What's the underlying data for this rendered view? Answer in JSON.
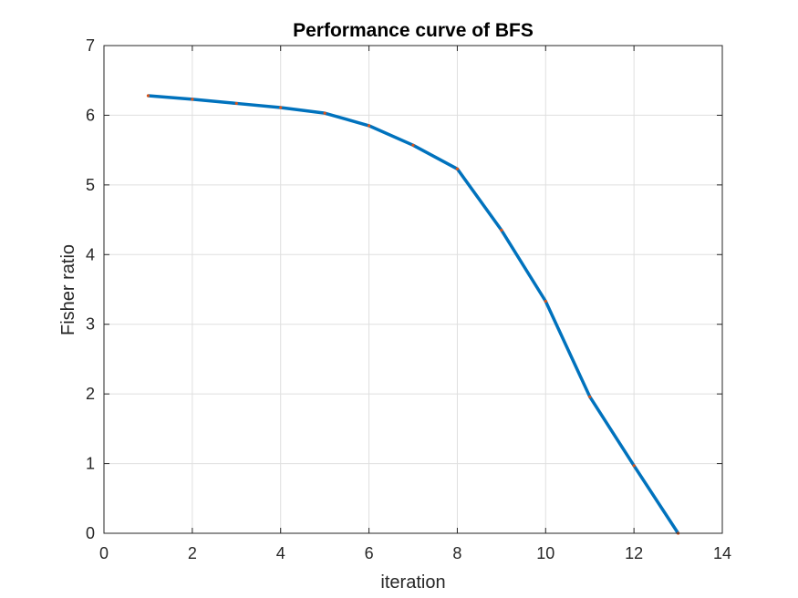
{
  "chart_data": {
    "type": "line",
    "title": "Performance curve of BFS",
    "xlabel": "iteration",
    "ylabel": "Fisher ratio",
    "xlim": [
      0,
      14
    ],
    "ylim": [
      0,
      7
    ],
    "xticks": [
      "0",
      "2",
      "4",
      "6",
      "8",
      "10",
      "12",
      "14"
    ],
    "yticks": [
      "0",
      "1",
      "2",
      "3",
      "4",
      "5",
      "6",
      "7"
    ],
    "grid": true,
    "series": [
      {
        "x": [
          1,
          2,
          3,
          4,
          5,
          6,
          7,
          8,
          9,
          10,
          11,
          12,
          13
        ],
        "y": [
          6.28,
          6.23,
          6.17,
          6.11,
          6.03,
          5.85,
          5.57,
          5.23,
          4.35,
          3.33,
          1.96,
          0.97,
          0.0
        ],
        "line_color": "#0072BD",
        "marker_color": "#D95319"
      }
    ]
  }
}
